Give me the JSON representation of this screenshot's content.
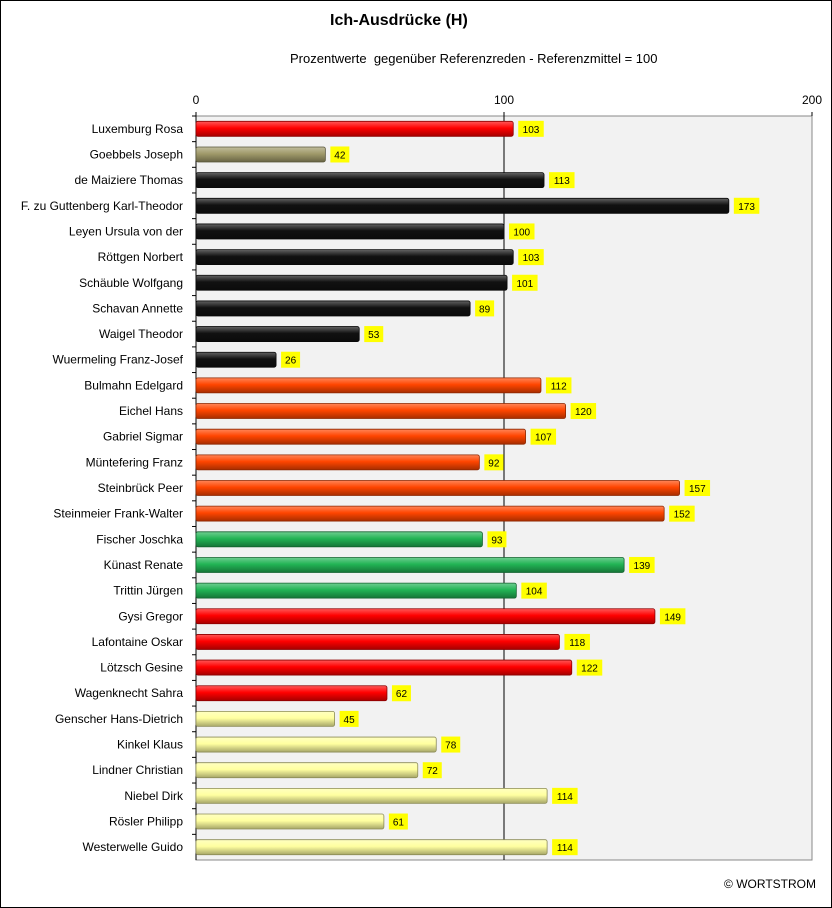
{
  "chart_data": {
    "type": "bar",
    "orientation": "horizontal",
    "title": "Ich-Ausdrücke (H)",
    "subtitle": "Prozentwerte  gegenüber Referenzreden - Referenzmittel = 100",
    "xlim": [
      0,
      200
    ],
    "ticks": [
      "0",
      "100",
      "200"
    ],
    "reference_line": 100,
    "grid": false,
    "legend": "none",
    "categories": [
      "Luxemburg Rosa",
      "Goebbels Joseph",
      "de Maiziere Thomas",
      "F. zu Guttenberg Karl-Theodor",
      "Leyen Ursula von der",
      "Röttgen Norbert",
      "Schäuble Wolfgang",
      "Schavan Annette",
      "Waigel Theodor",
      "Wuermeling Franz-Josef",
      "Bulmahn Edelgard",
      "Eichel Hans",
      "Gabriel Sigmar",
      "Müntefering Franz",
      "Steinbrück Peer",
      "Steinmeier Frank-Walter",
      "Fischer Joschka",
      "Künast Renate",
      "Trittin Jürgen",
      "Gysi Gregor",
      "Lafontaine Oskar",
      "Lötzsch Gesine",
      "Wagenknecht Sahra",
      "Genscher Hans-Dietrich",
      "Kinkel Klaus",
      "Lindner Christian",
      "Niebel Dirk",
      "Rösler Philipp",
      "Westerwelle Guido"
    ],
    "values": [
      103,
      42,
      113,
      173,
      100,
      103,
      101,
      89,
      53,
      26,
      112,
      120,
      107,
      92,
      157,
      152,
      93,
      139,
      104,
      149,
      118,
      122,
      62,
      45,
      78,
      72,
      114,
      61,
      114
    ],
    "bar_colors": [
      "#ff0000",
      "#a09a6a",
      "#111111",
      "#111111",
      "#111111",
      "#111111",
      "#111111",
      "#111111",
      "#111111",
      "#111111",
      "#ff4500",
      "#ff4500",
      "#ff4500",
      "#ff4500",
      "#ff4500",
      "#ff4500",
      "#22b455",
      "#22b455",
      "#22b455",
      "#ff0000",
      "#ff0000",
      "#ff0000",
      "#ff0000",
      "#ffffa0",
      "#ffffa0",
      "#ffffa0",
      "#ffffa0",
      "#ffffa0",
      "#ffffa0"
    ],
    "value_label_color": "#ffff00",
    "plot_background": "#f2f2f2"
  },
  "copyright": "© WORTSTROM"
}
